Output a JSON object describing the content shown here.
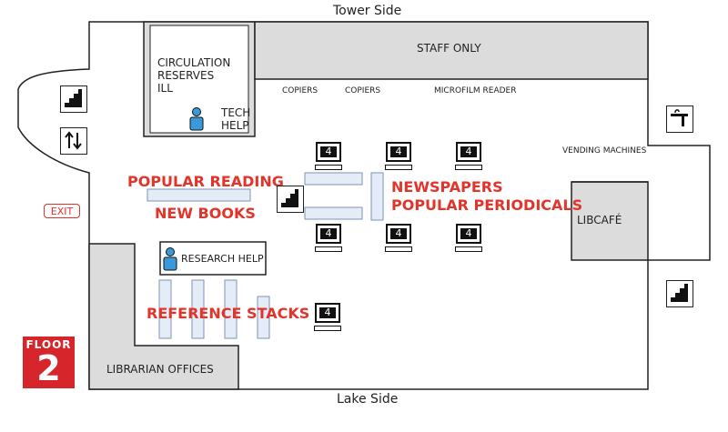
{
  "map": {
    "top_label": "Tower Side",
    "bottom_label": "Lake Side",
    "floor_word": "FLOOR",
    "floor_number": "2",
    "exit_label": "EXIT"
  },
  "rooms": {
    "circulation": [
      "CIRCULATION",
      "RESERVES",
      "ILL"
    ],
    "tech_help": [
      "TECH",
      "HELP"
    ],
    "staff_only": "STAFF ONLY",
    "libcafe": "LIBCAFÉ",
    "librarian_offices": "LIBRARIAN OFFICES",
    "research_help": "RESEARCH HELP"
  },
  "labels": {
    "copiers_1": "COPIERS",
    "copiers_2": "COPIERS",
    "microfilm": "MICROFILM READER",
    "vending": "VENDING MACHINES"
  },
  "sections": {
    "popular_reading": "POPULAR READING",
    "new_books": "NEW BOOKS",
    "newspapers": "NEWSPAPERS",
    "popular_periodicals": "POPULAR PERIODICALS",
    "reference_stacks": "REFERENCE STACKS"
  },
  "computer_number": "4",
  "colors": {
    "wall": "#222222",
    "room_gray": "#dcdcdc",
    "shelf": "#e3ecf7",
    "shelf_border": "#7f93b5",
    "accent_red": "#e2342b",
    "person_blue": "#3a9ad9"
  },
  "icons": [
    "stairs-icon",
    "elevator-icon",
    "water-fountain-icon",
    "computer-icon",
    "person-icon"
  ]
}
